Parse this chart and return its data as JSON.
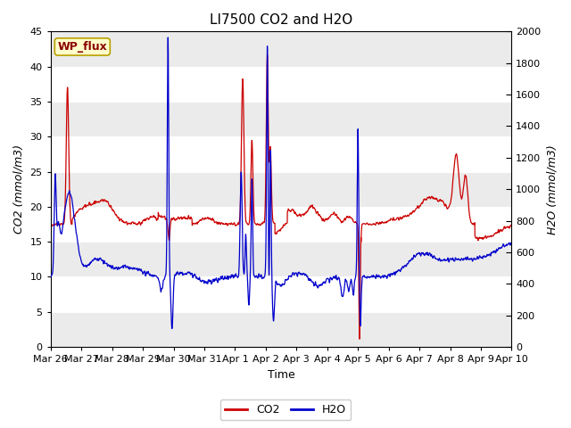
{
  "title": "LI7500 CO2 and H2O",
  "xlabel": "Time",
  "ylabel_left": "CO2 (mmol/m3)",
  "ylabel_right": "H2O (mmol/m3)",
  "ylim_left": [
    0,
    45
  ],
  "ylim_right": [
    0,
    2000
  ],
  "wp_flux_label": "WP_flux",
  "legend_co2": "CO2",
  "legend_h2o": "H2O",
  "co2_color": "#cc0000",
  "h2o_color": "#0000cc",
  "title_fontsize": 11,
  "axis_fontsize": 9,
  "tick_fontsize": 8,
  "x_tick_labels": [
    "Mar 26",
    "Mar 27",
    "Mar 28",
    "Mar 29",
    "Mar 30",
    "Mar 31",
    "Apr 1",
    "Apr 2",
    "Apr 3",
    "Apr 4",
    "Apr 5",
    "Apr 6",
    "Apr 7",
    "Apr 8",
    "Apr 9",
    "Apr 10"
  ],
  "x_tick_positions": [
    0,
    1,
    2,
    3,
    4,
    5,
    6,
    7,
    8,
    9,
    10,
    11,
    12,
    13,
    14,
    15
  ]
}
